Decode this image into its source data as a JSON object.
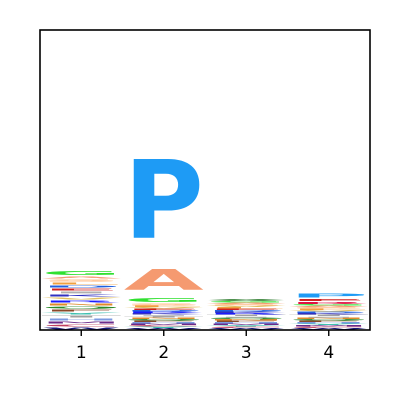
{
  "chart_data": {
    "type": "sequence-logo",
    "title": "",
    "xlabel": "",
    "ylabel": "",
    "x_ticks": [
      "1",
      "2",
      "3",
      "4"
    ],
    "ylim": [
      0,
      1
    ],
    "grid": false,
    "positions": [
      {
        "label": "1",
        "stack": [
          {
            "letter": "W",
            "color": "#1a1a7a",
            "height": 0.01
          },
          {
            "letter": "C",
            "color": "#c04060",
            "height": 0.01
          },
          {
            "letter": "M",
            "color": "#6a2a8a",
            "height": 0.01
          },
          {
            "letter": "H",
            "color": "#7a9ae0",
            "height": 0.01
          },
          {
            "letter": "T",
            "color": "#a0a0a0",
            "height": 0.01
          },
          {
            "letter": "Y",
            "color": "#40c0b0",
            "height": 0.01
          },
          {
            "letter": "F",
            "color": "#8a4a2a",
            "height": 0.01
          },
          {
            "letter": "Q",
            "color": "#2a8a2a",
            "height": 0.01
          },
          {
            "letter": "N",
            "color": "#e08a2a",
            "height": 0.01
          },
          {
            "letter": "R",
            "color": "#1a1aff",
            "height": 0.01
          },
          {
            "letter": "V",
            "color": "#e0c060",
            "height": 0.01
          },
          {
            "letter": "K",
            "color": "#3030c0",
            "height": 0.01
          },
          {
            "letter": "I",
            "color": "#b0b0b0",
            "height": 0.01
          },
          {
            "letter": "E",
            "color": "#d02020",
            "height": 0.01
          },
          {
            "letter": "D",
            "color": "#2060e0",
            "height": 0.01
          },
          {
            "letter": "L",
            "color": "#f0a040",
            "height": 0.01
          },
          {
            "letter": "S",
            "color": "#ffb070",
            "height": 0.01
          },
          {
            "letter": "A",
            "color": "#f59a70",
            "height": 0.01
          },
          {
            "letter": "G",
            "color": "#30e030",
            "height": 0.02
          }
        ]
      },
      {
        "label": "2",
        "stack": [
          {
            "letter": "W",
            "color": "#1a1a7a",
            "height": 0.005
          },
          {
            "letter": "Y",
            "color": "#40c0b0",
            "height": 0.005
          },
          {
            "letter": "C",
            "color": "#c04060",
            "height": 0.005
          },
          {
            "letter": "M",
            "color": "#6a2a8a",
            "height": 0.005
          },
          {
            "letter": "H",
            "color": "#7a9ae0",
            "height": 0.005
          },
          {
            "letter": "F",
            "color": "#8a4a2a",
            "height": 0.005
          },
          {
            "letter": "Q",
            "color": "#2a8a2a",
            "height": 0.005
          },
          {
            "letter": "N",
            "color": "#e08a2a",
            "height": 0.005
          },
          {
            "letter": "T",
            "color": "#a0a0a0",
            "height": 0.005
          },
          {
            "letter": "I",
            "color": "#b0b0b0",
            "height": 0.005
          },
          {
            "letter": "K",
            "color": "#3030c0",
            "height": 0.005
          },
          {
            "letter": "R",
            "color": "#1a1aff",
            "height": 0.005
          },
          {
            "letter": "D",
            "color": "#2060e0",
            "height": 0.005
          },
          {
            "letter": "E",
            "color": "#d02020",
            "height": 0.005
          },
          {
            "letter": "V",
            "color": "#e0c060",
            "height": 0.005
          },
          {
            "letter": "L",
            "color": "#f0a040",
            "height": 0.005
          },
          {
            "letter": "S",
            "color": "#ffb070",
            "height": 0.01
          },
          {
            "letter": "G",
            "color": "#30e030",
            "height": 0.02
          },
          {
            "letter": "A",
            "color": "#f59a70",
            "height": 0.11
          },
          {
            "letter": "P",
            "color": "#1e9bf5",
            "height": 0.42
          }
        ]
      },
      {
        "label": "3",
        "stack": [
          {
            "letter": "W",
            "color": "#1a1a7a",
            "height": 0.005
          },
          {
            "letter": "C",
            "color": "#c04060",
            "height": 0.005
          },
          {
            "letter": "Y",
            "color": "#40c0b0",
            "height": 0.005
          },
          {
            "letter": "M",
            "color": "#6a2a8a",
            "height": 0.005
          },
          {
            "letter": "H",
            "color": "#7a9ae0",
            "height": 0.005
          },
          {
            "letter": "F",
            "color": "#8a4a2a",
            "height": 0.005
          },
          {
            "letter": "N",
            "color": "#e08a2a",
            "height": 0.005
          },
          {
            "letter": "Q",
            "color": "#2a8a2a",
            "height": 0.005
          },
          {
            "letter": "I",
            "color": "#b0b0b0",
            "height": 0.005
          },
          {
            "letter": "T",
            "color": "#a0a0a0",
            "height": 0.005
          },
          {
            "letter": "R",
            "color": "#1a1aff",
            "height": 0.005
          },
          {
            "letter": "K",
            "color": "#3030c0",
            "height": 0.005
          },
          {
            "letter": "D",
            "color": "#2060e0",
            "height": 0.005
          },
          {
            "letter": "E",
            "color": "#d02020",
            "height": 0.005
          },
          {
            "letter": "L",
            "color": "#f0a040",
            "height": 0.005
          },
          {
            "letter": "V",
            "color": "#e0c060",
            "height": 0.005
          },
          {
            "letter": "S",
            "color": "#ffb070",
            "height": 0.005
          },
          {
            "letter": "A",
            "color": "#f59a70",
            "height": 0.005
          },
          {
            "letter": "G",
            "color": "#30e030",
            "height": 0.005
          },
          {
            "letter": "X",
            "color": "#2a7a2a",
            "height": 0.01
          }
        ]
      },
      {
        "label": "4",
        "stack": [
          {
            "letter": "W",
            "color": "#1a1a7a",
            "height": 0.005
          },
          {
            "letter": "C",
            "color": "#c04060",
            "height": 0.005
          },
          {
            "letter": "M",
            "color": "#6a2a8a",
            "height": 0.005
          },
          {
            "letter": "Y",
            "color": "#40c0b0",
            "height": 0.005
          },
          {
            "letter": "H",
            "color": "#7a9ae0",
            "height": 0.005
          },
          {
            "letter": "F",
            "color": "#8a4a2a",
            "height": 0.005
          },
          {
            "letter": "Q",
            "color": "#2a8a2a",
            "height": 0.005
          },
          {
            "letter": "N",
            "color": "#e08a2a",
            "height": 0.005
          },
          {
            "letter": "I",
            "color": "#b0b0b0",
            "height": 0.005
          },
          {
            "letter": "T",
            "color": "#a0a0a0",
            "height": 0.005
          },
          {
            "letter": "K",
            "color": "#3030c0",
            "height": 0.005
          },
          {
            "letter": "D",
            "color": "#2060e0",
            "height": 0.005
          },
          {
            "letter": "V",
            "color": "#e0c060",
            "height": 0.005
          },
          {
            "letter": "L",
            "color": "#f0a040",
            "height": 0.005
          },
          {
            "letter": "S",
            "color": "#ffb070",
            "height": 0.005
          },
          {
            "letter": "A",
            "color": "#f59a70",
            "height": 0.005
          },
          {
            "letter": "G",
            "color": "#30e030",
            "height": 0.005
          },
          {
            "letter": "R",
            "color": "#e01040",
            "height": 0.01
          },
          {
            "letter": "E",
            "color": "#d02020",
            "height": 0.01
          },
          {
            "letter": "P",
            "color": "#1e9bf5",
            "height": 0.02
          }
        ]
      }
    ]
  }
}
